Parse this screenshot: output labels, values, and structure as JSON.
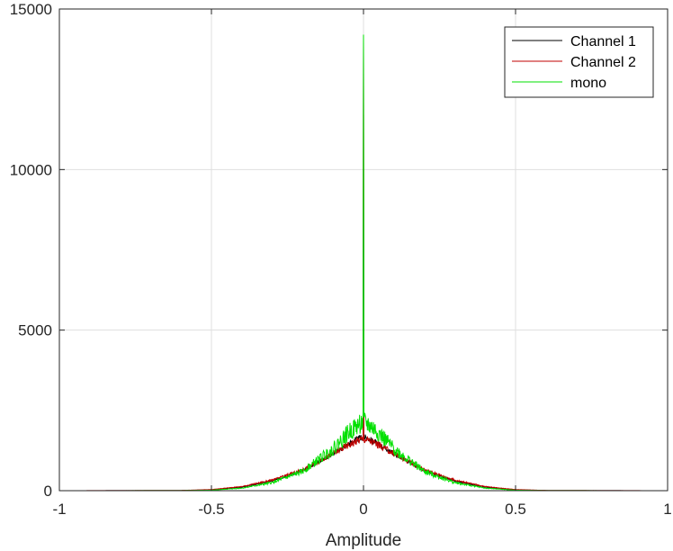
{
  "chart_data": {
    "type": "line",
    "title": "",
    "xlabel": "Amplitude",
    "ylabel": "",
    "xlim": [
      -1,
      1
    ],
    "ylim": [
      0,
      15000
    ],
    "xticks": [
      -1,
      -0.5,
      0,
      0.5,
      1
    ],
    "xtick_labels": [
      "-1",
      "-0.5",
      "0",
      "0.5",
      "1"
    ],
    "yticks": [
      0,
      5000,
      10000,
      15000
    ],
    "ytick_labels": [
      "0",
      "5000",
      "10000",
      "15000"
    ],
    "grid": true,
    "legend_position": "top-right",
    "series": [
      {
        "name": "Channel 1",
        "color": "#000000",
        "peak": 14100,
        "x": [
          -1,
          -0.6,
          -0.5,
          -0.4,
          -0.3,
          -0.2,
          -0.1,
          -0.05,
          -0.01,
          0,
          0.01,
          0.05,
          0.1,
          0.2,
          0.3,
          0.4,
          0.5,
          0.6,
          1
        ],
        "y": [
          0,
          5,
          25,
          110,
          300,
          620,
          1150,
          1450,
          1650,
          14100,
          1650,
          1450,
          1150,
          620,
          300,
          110,
          25,
          5,
          0
        ]
      },
      {
        "name": "Channel 2",
        "color": "#c00000",
        "peak": 14100,
        "x": [
          -1,
          -0.6,
          -0.5,
          -0.4,
          -0.3,
          -0.2,
          -0.1,
          -0.05,
          -0.01,
          0,
          0.01,
          0.05,
          0.1,
          0.2,
          0.3,
          0.4,
          0.5,
          0.6,
          1
        ],
        "y": [
          0,
          8,
          35,
          130,
          330,
          650,
          1150,
          1420,
          1600,
          14100,
          1600,
          1420,
          1150,
          650,
          330,
          130,
          35,
          8,
          0
        ]
      },
      {
        "name": "mono",
        "color": "#00e000",
        "peak": 14200,
        "x": [
          -1,
          -0.6,
          -0.5,
          -0.4,
          -0.3,
          -0.2,
          -0.1,
          -0.05,
          -0.01,
          0,
          0.01,
          0.05,
          0.1,
          0.2,
          0.3,
          0.4,
          0.5,
          0.6,
          1
        ],
        "y": [
          0,
          3,
          15,
          80,
          250,
          600,
          1300,
          1800,
          2100,
          14200,
          2100,
          1800,
          1300,
          600,
          250,
          80,
          15,
          3,
          0
        ]
      }
    ]
  }
}
